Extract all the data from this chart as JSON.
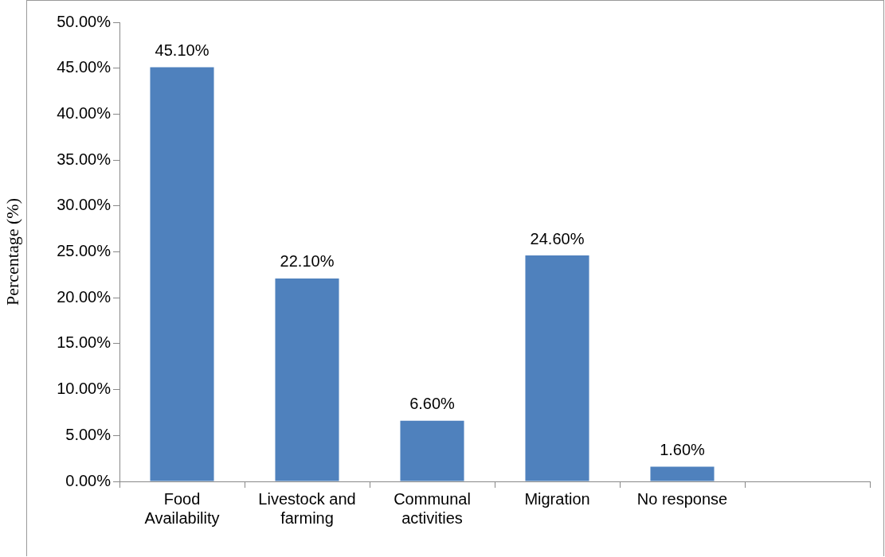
{
  "chart_data": {
    "type": "bar",
    "ylabel": "Percentage (%)",
    "categories": [
      "Food Availability",
      "Livestock and farming",
      "Communal activities",
      "Migration",
      "No response",
      null
    ],
    "values": [
      45.1,
      22.1,
      6.6,
      24.6,
      1.6,
      null
    ],
    "value_labels": [
      "45.10%",
      "22.10%",
      "6.60%",
      "24.60%",
      "1.60%",
      null
    ],
    "color": "#4f81bd",
    "ylim": [
      0,
      50
    ],
    "yticks": [
      {
        "value": 0,
        "label": "0.00%"
      },
      {
        "value": 5,
        "label": "5.00%"
      },
      {
        "value": 10,
        "label": "10.00%"
      },
      {
        "value": 15,
        "label": "15.00%"
      },
      {
        "value": 20,
        "label": "20.00%"
      },
      {
        "value": 25,
        "label": "25.00%"
      },
      {
        "value": 30,
        "label": "30.00%"
      },
      {
        "value": 35,
        "label": "35.00%"
      },
      {
        "value": 40,
        "label": "40.00%"
      },
      {
        "value": 45,
        "label": "45.00%"
      },
      {
        "value": 50,
        "label": "50.00%"
      }
    ],
    "grid": false,
    "legend": false
  }
}
